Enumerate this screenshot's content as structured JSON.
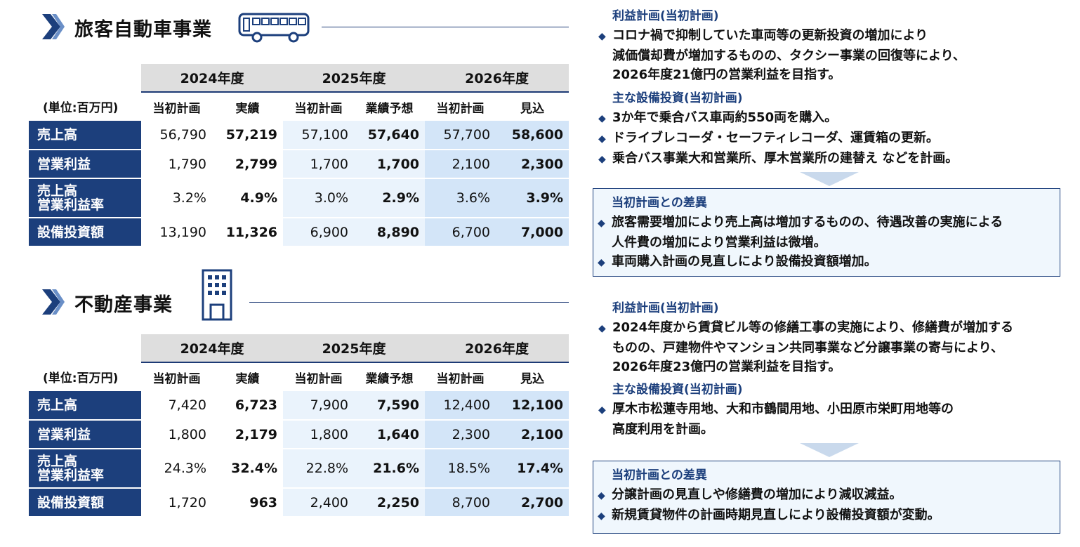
{
  "bus_section": {
    "title": "旅客自動車事業",
    "icon": "bus-icon",
    "table": {
      "unit": "(単位:百万円)",
      "years": [
        "2024年度",
        "2025年度",
        "2026年度"
      ],
      "subheaders": [
        "当初計画",
        "実績",
        "当初計画",
        "業績予想",
        "当初計画",
        "見込"
      ],
      "rows": [
        {
          "label": "売上高",
          "values": [
            "56,790",
            "57,219",
            "57,100",
            "57,640",
            "57,700",
            "58,600"
          ]
        },
        {
          "label": "営業利益",
          "values": [
            "1,790",
            "2,799",
            "1,700",
            "1,700",
            "2,100",
            "2,300"
          ]
        },
        {
          "label": "売上高\n営業利益率",
          "values": [
            "3.2%",
            "4.9%",
            "3.0%",
            "2.9%",
            "3.6%",
            "3.9%"
          ]
        },
        {
          "label": "設備投資額",
          "values": [
            "13,190",
            "11,326",
            "6,900",
            "8,890",
            "6,700",
            "7,000"
          ]
        }
      ]
    },
    "profit_plan": {
      "heading": "利益計画(当初計画)",
      "bullets": [
        {
          "lines": [
            "コロナ禍で抑制していた車両等の更新投資の増加により",
            "減価償却費が増加するものの、タクシー事業の回復等により、",
            "2026年度21億円の営業利益を目指す。"
          ]
        }
      ]
    },
    "capex_plan": {
      "heading": "主な設備投資(当初計画)",
      "bullets": [
        {
          "lines": [
            "3か年で乗合バス車両約550両を購入。"
          ]
        },
        {
          "lines": [
            "ドライブレコーダ・セーフティレコーダ、運賃箱の更新。"
          ]
        },
        {
          "lines": [
            "乗合バス事業大和営業所、厚木営業所の建替え などを計画。"
          ]
        }
      ]
    },
    "diff": {
      "heading": "当初計画との差異",
      "bullets": [
        {
          "lines": [
            "旅客需要増加により売上高は増加するものの、待遇改善の実施による",
            "人件費の増加により営業利益は微増。"
          ]
        },
        {
          "lines": [
            "車両購入計画の見直しにより設備投資額増加。"
          ]
        }
      ]
    }
  },
  "realestate_section": {
    "title": "不動産事業",
    "icon": "building-icon",
    "table": {
      "unit": "(単位:百万円)",
      "years": [
        "2024年度",
        "2025年度",
        "2026年度"
      ],
      "subheaders": [
        "当初計画",
        "実績",
        "当初計画",
        "業績予想",
        "当初計画",
        "見込"
      ],
      "rows": [
        {
          "label": "売上高",
          "values": [
            "7,420",
            "6,723",
            "7,900",
            "7,590",
            "12,400",
            "12,100"
          ]
        },
        {
          "label": "営業利益",
          "values": [
            "1,800",
            "2,179",
            "1,800",
            "1,640",
            "2,300",
            "2,100"
          ]
        },
        {
          "label": "売上高\n営業利益率",
          "values": [
            "24.3%",
            "32.4%",
            "22.8%",
            "21.6%",
            "18.5%",
            "17.4%"
          ]
        },
        {
          "label": "設備投資額",
          "values": [
            "1,720",
            "963",
            "2,400",
            "2,250",
            "8,700",
            "2,700"
          ]
        }
      ]
    },
    "profit_plan": {
      "heading": "利益計画(当初計画)",
      "bullets": [
        {
          "lines": [
            "2024年度から賃貸ビル等の修繕工事の実施により、修繕費が増加する",
            "ものの、戸建物件やマンション共同事業など分譲事業の寄与により、",
            "2026年度23億円の営業利益を目指す。"
          ]
        }
      ]
    },
    "capex_plan": {
      "heading": "主な設備投資(当初計画)",
      "bullets": [
        {
          "lines": [
            "厚木市松蓮寺用地、大和市鶴間用地、小田原市栄町用地等の",
            "高度利用を計画。"
          ]
        }
      ]
    },
    "diff": {
      "heading": "当初計画との差異",
      "bullets": [
        {
          "lines": [
            "分譲計画の見直しや修繕費の増加により減収減益。"
          ]
        },
        {
          "lines": [
            "新規賃貸物件の計画時期見直しにより設備投資額が変動。"
          ]
        }
      ]
    }
  },
  "bullet_symbol": "◆",
  "colors": {
    "navy": "#1c3f7c",
    "header_gray": "#dedede",
    "light_blue": "#eaf3fc",
    "mid_blue": "#d3e5f8"
  }
}
